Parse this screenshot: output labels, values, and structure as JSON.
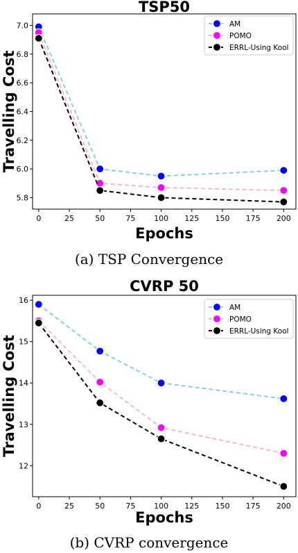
{
  "chart_data": [
    {
      "type": "line",
      "title": "TSP50",
      "xlabel": "Epochs",
      "ylabel": "Travelling Cost",
      "caption": "(a) TSP Convergence",
      "x": [
        0,
        50,
        100,
        200
      ],
      "xlim": [
        -5,
        210
      ],
      "ylim": [
        5.72,
        7.08
      ],
      "xticks": [
        0,
        25,
        50,
        75,
        100,
        125,
        150,
        175,
        200
      ],
      "xtick_labels": [
        "0",
        "25",
        "50",
        "75",
        "100",
        "125",
        "150",
        "175",
        "200"
      ],
      "yticks": [
        5.8,
        6.0,
        6.2,
        6.4,
        6.6,
        6.8,
        7.0
      ],
      "ytick_labels": [
        "5.8",
        "6.0",
        "6.2",
        "6.4",
        "6.6",
        "6.8",
        "7.0"
      ],
      "grid": false,
      "legend_position": "top-right",
      "series": [
        {
          "name": "AM",
          "values": [
            6.99,
            6.0,
            5.95,
            5.99
          ],
          "line_color": "#87ceeb",
          "marker_color": "#0000ff"
        },
        {
          "name": "POMO",
          "values": [
            6.95,
            5.9,
            5.87,
            5.85
          ],
          "line_color": "#ffb6c1",
          "marker_color": "#ff00ff"
        },
        {
          "name": "ERRL-Using Kool",
          "values": [
            6.91,
            5.85,
            5.8,
            5.77
          ],
          "line_color": "#000000",
          "marker_color": "#000000"
        }
      ]
    },
    {
      "type": "line",
      "title": "CVRP 50",
      "xlabel": "Epochs",
      "ylabel": "Travelling Cost",
      "caption": "(b) CVRP convergence",
      "x": [
        0,
        50,
        100,
        200
      ],
      "xlim": [
        -5,
        210
      ],
      "ylim": [
        11.25,
        16.12
      ],
      "xticks": [
        0,
        25,
        50,
        75,
        100,
        125,
        150,
        175,
        200
      ],
      "xtick_labels": [
        "0",
        "25",
        "50",
        "75",
        "100",
        "125",
        "150",
        "175",
        "200"
      ],
      "yticks": [
        12,
        13,
        14,
        15,
        16
      ],
      "ytick_labels": [
        "12",
        "13",
        "14",
        "15",
        "16"
      ],
      "grid": false,
      "legend_position": "top-right",
      "series": [
        {
          "name": "AM",
          "values": [
            15.9,
            14.77,
            14.0,
            13.62
          ],
          "line_color": "#87ceeb",
          "marker_color": "#0000ff"
        },
        {
          "name": "POMO",
          "values": [
            15.5,
            14.02,
            12.92,
            12.3
          ],
          "line_color": "#ffb6c1",
          "marker_color": "#ff00ff"
        },
        {
          "name": "ERRL-Using Kool",
          "values": [
            15.45,
            13.52,
            12.65,
            11.5
          ],
          "line_color": "#000000",
          "marker_color": "#000000"
        }
      ]
    }
  ]
}
